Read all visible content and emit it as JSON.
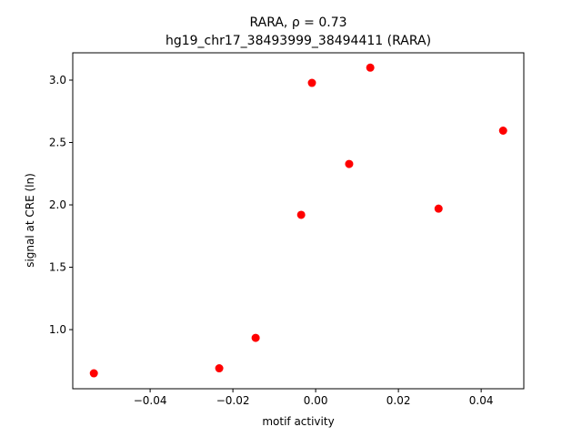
{
  "chart_data": {
    "type": "scatter",
    "title": "RARA, ρ = 0.73",
    "subtitle": "hg19_chr17_38493999_38494411 (RARA)",
    "x_label": "motif activity",
    "y_label": "signal at CRE (ln)",
    "color": "#ff0000",
    "x": [
      -0.0536,
      -0.0233,
      -0.0145,
      -0.0035,
      -0.0009,
      0.0081,
      0.0132,
      0.0297,
      0.0453
    ],
    "y": [
      0.65,
      0.69,
      0.934,
      1.92,
      2.978,
      2.328,
      3.1,
      1.97,
      2.595
    ],
    "xlim": [
      -0.0587,
      0.0503
    ],
    "ylim": [
      0.526,
      3.219
    ],
    "xticks": [
      {
        "value": -0.04,
        "label": "−0.04"
      },
      {
        "value": -0.02,
        "label": "−0.02"
      },
      {
        "value": 0,
        "label": "0.00"
      },
      {
        "value": 0.02,
        "label": "0.02"
      },
      {
        "value": 0.04,
        "label": "0.04"
      }
    ],
    "yticks": [
      {
        "value": 1,
        "label": "1.0"
      },
      1.5,
      {
        "value": 2,
        "label": "2.0"
      },
      2.5,
      {
        "value": 3,
        "label": "3.0"
      }
    ],
    "grid": false
  }
}
